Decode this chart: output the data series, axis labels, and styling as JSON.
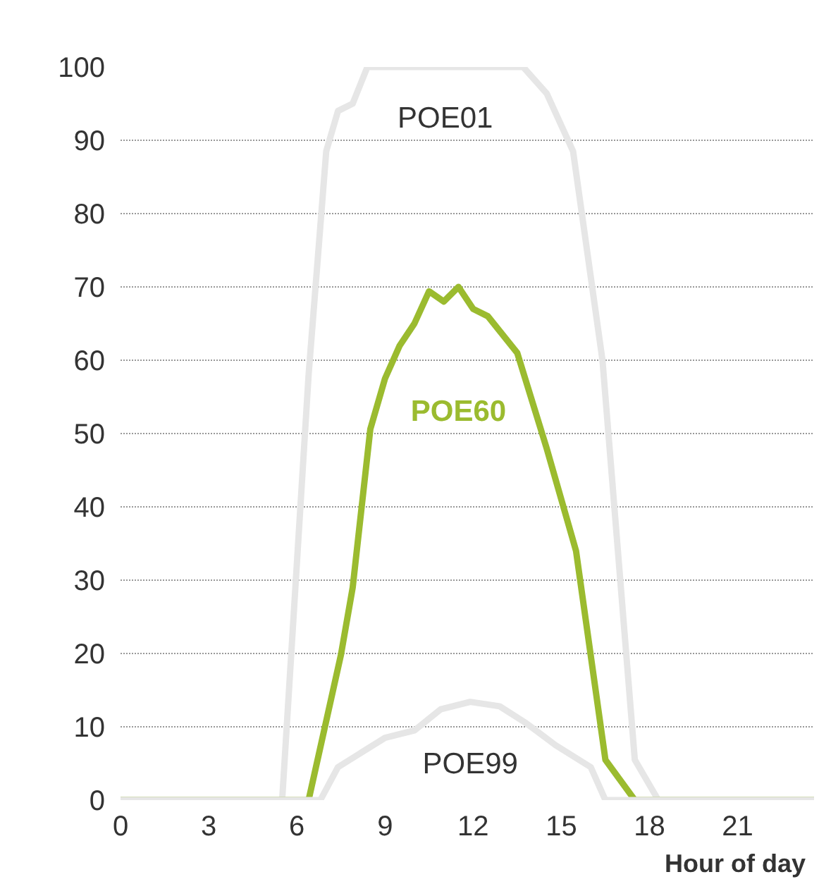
{
  "chart_data": {
    "type": "line",
    "xlabel": "Hour of day",
    "xlim": [
      0,
      23.6
    ],
    "xticks": [
      0,
      3,
      6,
      9,
      12,
      15,
      18,
      21
    ],
    "ylim": [
      0,
      100
    ],
    "yticks": [
      0,
      10,
      20,
      30,
      40,
      50,
      60,
      70,
      80,
      90,
      100
    ],
    "grid": "y",
    "marker": "none",
    "line_style": "solid",
    "series": [
      {
        "name": "POE01",
        "color": "#e6e6e6",
        "x": [
          0,
          5.5,
          6.4,
          7,
          7.4,
          7.9,
          8.4,
          10,
          12,
          13.7,
          14.5,
          15.4,
          16.4,
          17.5,
          18.3,
          23.6
        ],
        "values": [
          0,
          0,
          58,
          88.5,
          94,
          95,
          100,
          100,
          100,
          100,
          96.4,
          88.5,
          60,
          5.5,
          0,
          0
        ]
      },
      {
        "name": "POE60",
        "color": "#9bbb2f",
        "x": [
          0,
          6.4,
          7.5,
          7.9,
          8.5,
          9,
          9.5,
          10,
          10.5,
          11,
          11.5,
          12,
          12.5,
          13.5,
          14.5,
          15.5,
          16.5,
          17.5,
          23.6
        ],
        "values": [
          0,
          0,
          19.8,
          29,
          50.6,
          57.5,
          62,
          65,
          69.4,
          68,
          70,
          67,
          66,
          61,
          48,
          34,
          5.5,
          0,
          0
        ]
      },
      {
        "name": "POE99",
        "color": "#e6e6e6",
        "x": [
          0,
          6.8,
          7.4,
          8.2,
          9,
          10,
          10.9,
          11.9,
          12.9,
          13.8,
          14.8,
          16,
          16.5,
          23.6
        ],
        "values": [
          0,
          0,
          4.5,
          6.5,
          8.5,
          9.5,
          12.4,
          13.4,
          12.8,
          10.5,
          7.5,
          4.5,
          0,
          0
        ]
      }
    ]
  }
}
